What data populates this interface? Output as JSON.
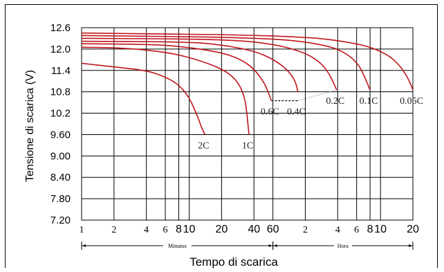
{
  "chart_data": {
    "type": "line",
    "title": "",
    "xlabel": "Tempo di scarica",
    "ylabel": "Tensione di scarica (V)",
    "x_scale": "log",
    "x_unit": "minutes",
    "ylim": [
      7.2,
      12.6
    ],
    "y_ticks": [
      "12.6",
      "12.0",
      "11.4",
      "10.8",
      "10.2",
      "9.60",
      "9.00",
      "8.40",
      "7.80",
      "7.20"
    ],
    "x_ticks": [
      {
        "label": "1",
        "minutes": 1,
        "style": "serif"
      },
      {
        "label": "2",
        "minutes": 2,
        "style": "serif"
      },
      {
        "label": "4",
        "minutes": 4,
        "style": "serif"
      },
      {
        "label": "6",
        "minutes": 6,
        "style": "serif"
      },
      {
        "label": "8",
        "minutes": 8,
        "style": "bold"
      },
      {
        "label": "10",
        "minutes": 10,
        "style": "bold"
      },
      {
        "label": "20",
        "minutes": 20,
        "style": "bold"
      },
      {
        "label": "40",
        "minutes": 40,
        "style": "bold"
      },
      {
        "label": "60",
        "minutes": 60,
        "style": "bold"
      },
      {
        "label": "2",
        "minutes": 120,
        "style": "serif"
      },
      {
        "label": "4",
        "minutes": 240,
        "style": "serif"
      },
      {
        "label": "6",
        "minutes": 360,
        "style": "serif"
      },
      {
        "label": "8",
        "minutes": 480,
        "style": "bold"
      },
      {
        "label": "10",
        "minutes": 600,
        "style": "bold"
      },
      {
        "label": "20",
        "minutes": 1200,
        "style": "bold"
      }
    ],
    "grid": true,
    "range_labels": [
      {
        "label": "Minutos",
        "from": 1,
        "to": 60
      },
      {
        "label": "Hora",
        "from": 60,
        "to": 1200
      }
    ],
    "line_color": "#c0141c",
    "series": [
      {
        "name": "2C",
        "points": [
          [
            1,
            11.6
          ],
          [
            2,
            11.5
          ],
          [
            4,
            11.4
          ],
          [
            6,
            11.22
          ],
          [
            8,
            11.0
          ],
          [
            10,
            10.65
          ],
          [
            12,
            10.1
          ],
          [
            13,
            9.8
          ],
          [
            14,
            9.6
          ]
        ]
      },
      {
        "name": "1C",
        "points": [
          [
            1,
            12.05
          ],
          [
            2,
            12.04
          ],
          [
            4,
            11.98
          ],
          [
            8,
            11.85
          ],
          [
            15,
            11.6
          ],
          [
            22,
            11.38
          ],
          [
            28,
            11.1
          ],
          [
            32,
            10.75
          ],
          [
            34,
            10.35
          ],
          [
            35,
            9.95
          ],
          [
            36,
            9.6
          ]
        ]
      },
      {
        "name": "0.6C",
        "points": [
          [
            1,
            12.15
          ],
          [
            5,
            12.13
          ],
          [
            10,
            12.05
          ],
          [
            20,
            11.9
          ],
          [
            30,
            11.72
          ],
          [
            40,
            11.45
          ],
          [
            50,
            11.05
          ],
          [
            55,
            10.75
          ],
          [
            58,
            10.55
          ]
        ]
      },
      {
        "name": "0.4C",
        "points": [
          [
            1,
            12.22
          ],
          [
            10,
            12.2
          ],
          [
            20,
            12.12
          ],
          [
            40,
            11.95
          ],
          [
            60,
            11.72
          ],
          [
            80,
            11.45
          ],
          [
            95,
            11.15
          ],
          [
            100,
            10.95
          ],
          [
            102,
            10.8
          ]
        ]
      },
      {
        "name": "0.2C",
        "points": [
          [
            1,
            12.3
          ],
          [
            20,
            12.28
          ],
          [
            60,
            12.15
          ],
          [
            120,
            11.9
          ],
          [
            170,
            11.6
          ],
          [
            200,
            11.3
          ],
          [
            220,
            11.05
          ],
          [
            235,
            10.85
          ]
        ]
      },
      {
        "name": "0.1C",
        "points": [
          [
            1,
            12.38
          ],
          [
            60,
            12.32
          ],
          [
            200,
            12.1
          ],
          [
            300,
            11.85
          ],
          [
            380,
            11.55
          ],
          [
            430,
            11.2
          ],
          [
            465,
            10.95
          ],
          [
            480,
            10.85
          ]
        ]
      },
      {
        "name": "0.05C",
        "points": [
          [
            1,
            12.45
          ],
          [
            100,
            12.38
          ],
          [
            400,
            12.15
          ],
          [
            700,
            11.85
          ],
          [
            900,
            11.55
          ],
          [
            1050,
            11.25
          ],
          [
            1150,
            11.0
          ],
          [
            1200,
            10.85
          ]
        ]
      }
    ],
    "cutoffs": [
      {
        "from_min": 14,
        "to_min": 36,
        "y": 9.6
      },
      {
        "from_min": 58,
        "to_min": 102,
        "y": 10.55
      }
    ],
    "cutoff_link": {
      "from_min": 102,
      "from_y": 10.55,
      "to_min": 235,
      "to_y": 10.85
    },
    "annotations": [
      {
        "text": "2C",
        "x": 14,
        "y": 9.6
      },
      {
        "text": "1C",
        "x": 36,
        "y": 9.6
      },
      {
        "text": "0.6C",
        "x": 58,
        "y": 10.55
      },
      {
        "text": "0.4C",
        "x": 102,
        "y": 10.55
      },
      {
        "text": "0.2C",
        "x": 235,
        "y": 10.85
      },
      {
        "text": "0.1C",
        "x": 480,
        "y": 10.85
      },
      {
        "text": "0.05C",
        "x": 1200,
        "y": 10.85
      }
    ]
  }
}
